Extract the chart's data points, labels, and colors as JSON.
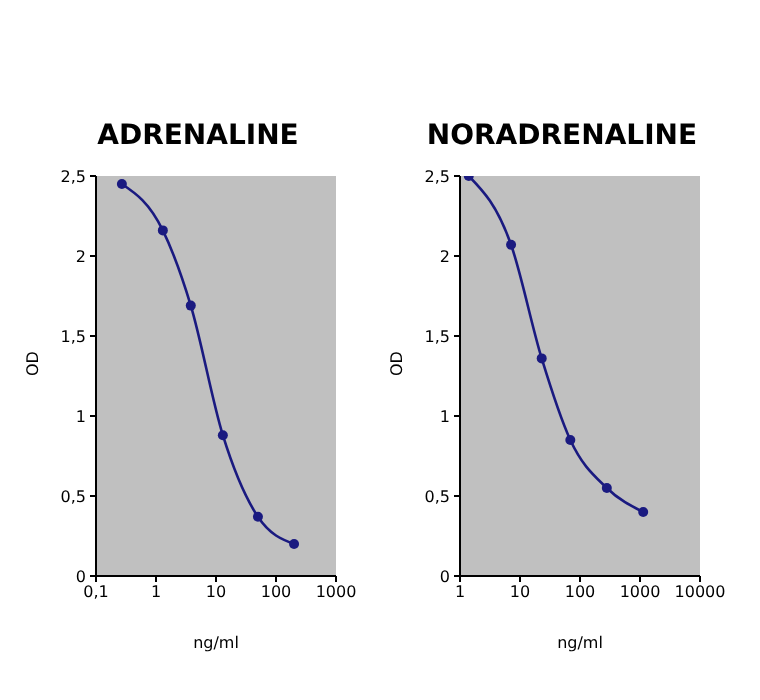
{
  "chart_data": [
    {
      "type": "line",
      "title": "ADRENALINE",
      "xlabel": "ng/ml",
      "ylabel": "OD",
      "log": "x",
      "marker": "circle",
      "line_style": "solid",
      "grid": false,
      "xlim": [
        0.1,
        1000
      ],
      "xticks": [
        {
          "value": 0.1,
          "label": "0,1"
        },
        1,
        10,
        100,
        1000
      ],
      "ylim": [
        0,
        2.5
      ],
      "yticks": [
        0,
        {
          "value": 0.5,
          "label": "0,5"
        },
        1,
        {
          "value": 1.5,
          "label": "1,5"
        },
        2,
        {
          "value": 2.5,
          "label": "2,5"
        }
      ],
      "series": [
        {
          "color": "#1a1a80",
          "x": [
            0.27,
            1.3,
            3.8,
            13,
            50,
            200
          ],
          "values": [
            2.45,
            2.16,
            1.69,
            0.88,
            0.37,
            0.2
          ]
        }
      ]
    },
    {
      "type": "line",
      "title": "NORADRENALINE",
      "xlabel": "ng/ml",
      "ylabel": "OD",
      "log": "x",
      "marker": "circle",
      "line_style": "solid",
      "grid": false,
      "xlim": [
        1,
        10000
      ],
      "xticks": [
        1,
        10,
        100,
        1000,
        10000
      ],
      "ylim": [
        0,
        2.5
      ],
      "yticks": [
        0,
        {
          "value": 0.5,
          "label": "0,5"
        },
        1,
        {
          "value": 1.5,
          "label": "1,5"
        },
        2,
        {
          "value": 2.5,
          "label": "2,5"
        }
      ],
      "series": [
        {
          "color": "#1a1a80",
          "x": [
            1.4,
            7.1,
            23,
            69,
            280,
            1130
          ],
          "values": [
            2.5,
            2.07,
            1.36,
            0.85,
            0.55,
            0.4
          ]
        }
      ]
    }
  ]
}
